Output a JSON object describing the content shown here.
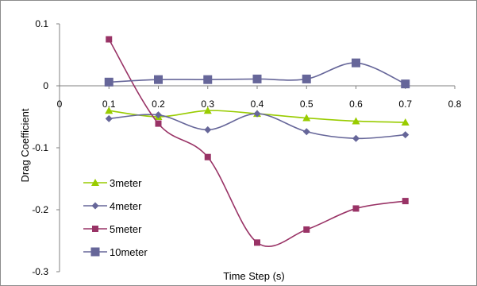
{
  "chart_data": {
    "type": "line",
    "title": "",
    "xlabel": "Time Step (s)",
    "ylabel": "Drag Coefficient",
    "xlim": [
      0,
      0.8
    ],
    "ylim": [
      -0.3,
      0.1
    ],
    "x_ticks": [
      "0",
      "0.1",
      "0.2",
      "0.3",
      "0.4",
      "0.5",
      "0.6",
      "0.7",
      "0.8"
    ],
    "y_ticks": [
      "0.1",
      "0",
      "-0.1",
      "-0.2",
      "-0.3"
    ],
    "x_tick_values": [
      0,
      0.1,
      0.2,
      0.3,
      0.4,
      0.5,
      0.6,
      0.7,
      0.8
    ],
    "y_tick_values": [
      0.1,
      0,
      -0.1,
      -0.2,
      -0.3
    ],
    "grid": false,
    "legend_position": "bottom-left",
    "smooth": true,
    "x": [
      0.1,
      0.2,
      0.3,
      0.4,
      0.5,
      0.6,
      0.7
    ],
    "series": [
      {
        "name": "3meter",
        "color": "#99cc00",
        "marker": "triangle",
        "values": [
          -0.04,
          -0.05,
          -0.04,
          -0.045,
          -0.052,
          -0.057,
          -0.059
        ]
      },
      {
        "name": "4meter",
        "color": "#666699",
        "marker": "diamond",
        "values": [
          -0.053,
          -0.047,
          -0.071,
          -0.045,
          -0.074,
          -0.085,
          -0.079
        ]
      },
      {
        "name": "5meter",
        "color": "#993366",
        "marker": "square",
        "values": [
          0.075,
          -0.061,
          -0.115,
          -0.253,
          -0.232,
          -0.198,
          -0.186
        ]
      },
      {
        "name": "10meter",
        "color": "#666699",
        "marker": "square-large",
        "values": [
          0.006,
          0.01,
          0.01,
          0.011,
          0.011,
          0.037,
          0.003
        ]
      }
    ]
  }
}
